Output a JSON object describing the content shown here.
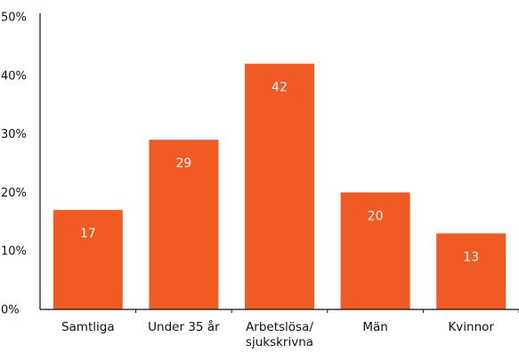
{
  "chart_data": {
    "type": "bar",
    "categories": [
      [
        "Samtliga"
      ],
      [
        "Under 35 år"
      ],
      [
        "Arbetslösa/",
        "sjukskrivna"
      ],
      [
        "Män"
      ],
      [
        "Kvinnor"
      ]
    ],
    "values": [
      17,
      29,
      42,
      20,
      13
    ],
    "data_labels": [
      "17",
      "29",
      "42",
      "20",
      "13"
    ],
    "y_ticks": [
      0,
      10,
      20,
      30,
      40,
      50
    ],
    "y_tick_labels": [
      "0%",
      "10%",
      "20%",
      "30%",
      "40%",
      "50%"
    ],
    "ylim": [
      0,
      50
    ],
    "grid": false,
    "legend": "none",
    "title": "",
    "xlabel": "",
    "ylabel": "",
    "colors": {
      "bar": "#f15a22",
      "axis": "#111111",
      "value_label": "#ffffff",
      "text": "#111111"
    }
  }
}
